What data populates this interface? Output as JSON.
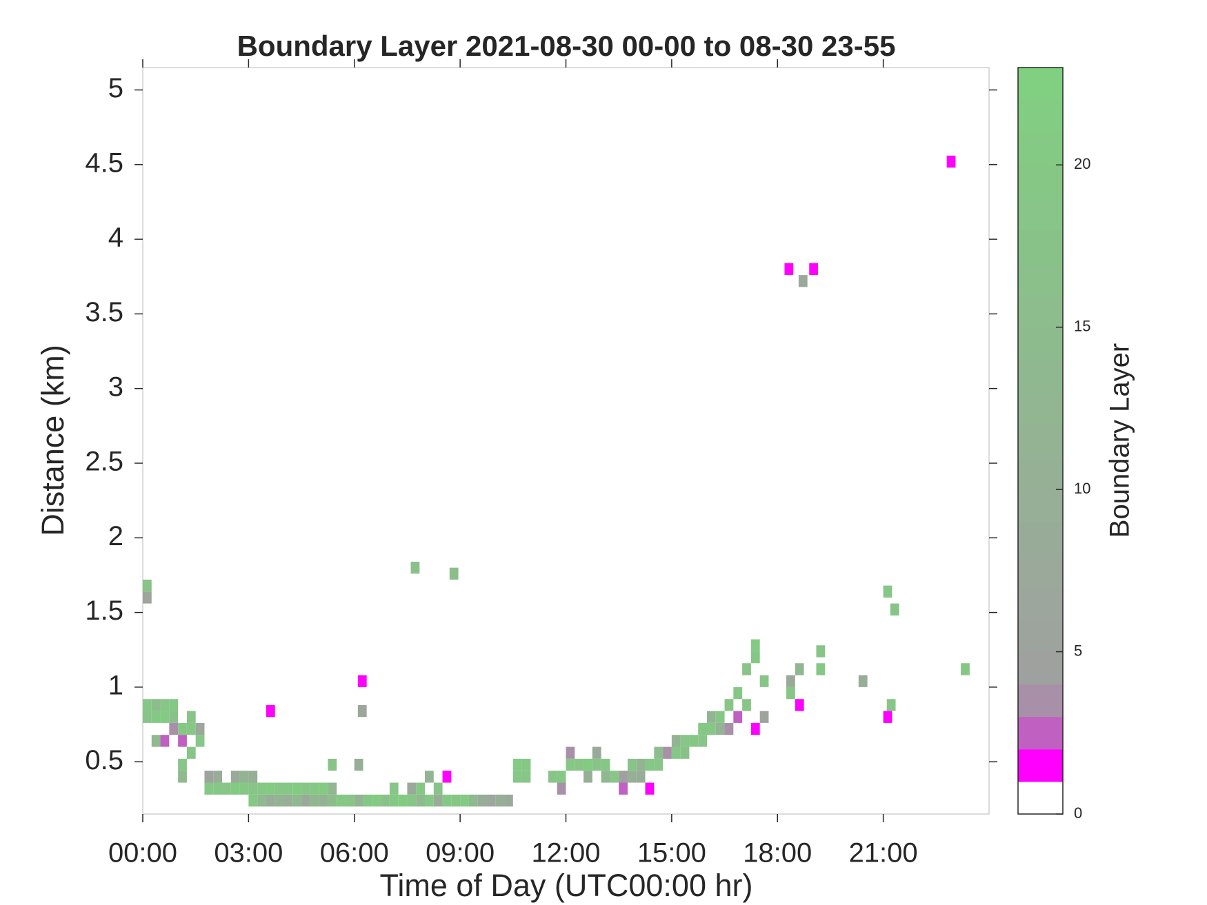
{
  "chart_data": {
    "type": "heatmap",
    "title": "Boundary Layer 2021-08-30 00-00 to 08-30 23-55",
    "x_label": "Time of Day (UTC00:00 hr)",
    "y_label": "Distance (km)",
    "xlim": [
      0,
      24
    ],
    "xticks": [
      {
        "value": 0,
        "label": "00:00"
      },
      {
        "value": 3,
        "label": "03:00"
      },
      {
        "value": 6,
        "label": "06:00"
      },
      {
        "value": 9,
        "label": "09:00"
      },
      {
        "value": 12,
        "label": "12:00"
      },
      {
        "value": 15,
        "label": "15:00"
      },
      {
        "value": 18,
        "label": "18:00"
      },
      {
        "value": 21,
        "label": "21:00"
      }
    ],
    "ylim": [
      0.15,
      5.15
    ],
    "yticks": [
      0.5,
      1,
      1.5,
      2,
      2.5,
      3,
      3.5,
      4,
      4.5,
      5
    ],
    "colorbar": {
      "label": "Boundary Layer",
      "lim": [
        0,
        23
      ],
      "ticks": [
        0,
        5,
        10,
        15,
        20
      ],
      "colormap": [
        "#ffffff",
        "#ff00ff",
        "#c060c0",
        "#a890a8",
        "#a0a0a0",
        "#80d080"
      ]
    },
    "cells": [
      [
        0,
        0.76,
        18
      ],
      [
        0,
        0.84,
        20
      ],
      [
        0.25,
        0.76,
        20
      ],
      [
        0.25,
        0.84,
        16
      ],
      [
        0.5,
        0.76,
        21
      ],
      [
        0.5,
        0.84,
        19
      ],
      [
        0.75,
        0.76,
        17
      ],
      [
        0.75,
        0.84,
        20
      ],
      [
        0,
        1.56,
        6
      ],
      [
        0,
        1.64,
        18
      ],
      [
        0.25,
        0.6,
        14
      ],
      [
        0.5,
        0.6,
        2
      ],
      [
        0.75,
        0.68,
        3
      ],
      [
        1,
        0.68,
        20
      ],
      [
        1,
        0.6,
        2
      ],
      [
        1,
        0.44,
        19
      ],
      [
        1,
        0.36,
        14
      ],
      [
        1.25,
        0.68,
        20
      ],
      [
        1.25,
        0.76,
        18
      ],
      [
        1.25,
        0.52,
        19
      ],
      [
        1.5,
        0.68,
        7
      ],
      [
        1.5,
        0.6,
        19
      ],
      [
        1.75,
        0.36,
        5
      ],
      [
        1.75,
        0.28,
        20
      ],
      [
        2,
        0.28,
        20
      ],
      [
        2,
        0.36,
        9
      ],
      [
        2.25,
        0.28,
        19
      ],
      [
        2.5,
        0.28,
        21
      ],
      [
        2.5,
        0.36,
        8
      ],
      [
        2.75,
        0.28,
        20
      ],
      [
        2.75,
        0.36,
        12
      ],
      [
        3,
        0.2,
        20
      ],
      [
        3,
        0.28,
        18
      ],
      [
        3,
        0.36,
        10
      ],
      [
        3.25,
        0.2,
        14
      ],
      [
        3.25,
        0.28,
        20
      ],
      [
        3.5,
        0.2,
        9
      ],
      [
        3.5,
        0.28,
        21
      ],
      [
        3.5,
        0.8,
        1.5
      ],
      [
        3.75,
        0.2,
        12
      ],
      [
        3.75,
        0.28,
        19
      ],
      [
        4,
        0.2,
        10
      ],
      [
        4,
        0.28,
        20
      ],
      [
        4.25,
        0.2,
        14
      ],
      [
        4.25,
        0.28,
        21
      ],
      [
        4.5,
        0.2,
        8
      ],
      [
        4.5,
        0.28,
        19
      ],
      [
        4.75,
        0.2,
        13
      ],
      [
        4.75,
        0.28,
        20
      ],
      [
        5,
        0.2,
        11
      ],
      [
        5,
        0.28,
        21
      ],
      [
        5.25,
        0.2,
        16
      ],
      [
        5.25,
        0.28,
        13
      ],
      [
        5.25,
        0.44,
        18
      ],
      [
        5.5,
        0.2,
        20
      ],
      [
        5.75,
        0.2,
        19
      ],
      [
        6,
        0.2,
        12
      ],
      [
        6,
        0.44,
        10
      ],
      [
        6.1,
        0.8,
        6
      ],
      [
        6.1,
        1.0,
        1.5
      ],
      [
        6.25,
        0.2,
        20
      ],
      [
        6.5,
        0.2,
        21
      ],
      [
        6.75,
        0.2,
        17
      ],
      [
        7,
        0.2,
        20
      ],
      [
        7,
        0.28,
        19
      ],
      [
        7.25,
        0.2,
        21
      ],
      [
        7.5,
        0.2,
        19
      ],
      [
        7.5,
        0.28,
        8
      ],
      [
        7.6,
        1.76,
        17
      ],
      [
        7.75,
        0.2,
        14
      ],
      [
        7.75,
        0.28,
        20
      ],
      [
        8,
        0.2,
        20
      ],
      [
        8,
        0.36,
        12
      ],
      [
        8.25,
        0.28,
        18
      ],
      [
        8.25,
        0.2,
        9
      ],
      [
        8.5,
        0.2,
        20
      ],
      [
        8.5,
        0.36,
        1.5
      ],
      [
        8.7,
        1.72,
        16
      ],
      [
        8.75,
        0.2,
        19
      ],
      [
        9,
        0.2,
        21
      ],
      [
        9.25,
        0.2,
        14
      ],
      [
        9.5,
        0.2,
        9
      ],
      [
        9.75,
        0.2,
        7
      ],
      [
        10,
        0.2,
        10
      ],
      [
        10.25,
        0.2,
        8
      ],
      [
        10.5,
        0.36,
        20
      ],
      [
        10.5,
        0.44,
        21
      ],
      [
        10.75,
        0.36,
        19
      ],
      [
        10.75,
        0.44,
        20
      ],
      [
        11.5,
        0.36,
        18
      ],
      [
        11.75,
        0.28,
        3
      ],
      [
        11.75,
        0.36,
        20
      ],
      [
        12,
        0.44,
        20
      ],
      [
        12,
        0.52,
        3
      ],
      [
        12.25,
        0.44,
        19
      ],
      [
        12.5,
        0.44,
        21
      ],
      [
        12.5,
        0.36,
        10
      ],
      [
        12.75,
        0.44,
        18
      ],
      [
        12.75,
        0.52,
        8
      ],
      [
        13,
        0.36,
        13
      ],
      [
        13,
        0.44,
        20
      ],
      [
        13.25,
        0.36,
        19
      ],
      [
        13.5,
        0.28,
        2
      ],
      [
        13.5,
        0.36,
        4
      ],
      [
        13.75,
        0.36,
        10
      ],
      [
        13.75,
        0.44,
        18
      ],
      [
        14,
        0.36,
        9
      ],
      [
        14,
        0.44,
        12
      ],
      [
        14.25,
        0.28,
        1.5
      ],
      [
        14.25,
        0.44,
        20
      ],
      [
        14.5,
        0.44,
        19
      ],
      [
        14.5,
        0.52,
        16
      ],
      [
        14.75,
        0.52,
        3
      ],
      [
        15,
        0.52,
        20
      ],
      [
        15,
        0.6,
        12
      ],
      [
        15.25,
        0.52,
        17
      ],
      [
        15.25,
        0.6,
        19
      ],
      [
        15.5,
        0.6,
        20
      ],
      [
        15.75,
        0.6,
        19
      ],
      [
        15.75,
        0.68,
        20
      ],
      [
        16,
        0.68,
        20
      ],
      [
        16,
        0.76,
        12
      ],
      [
        16.25,
        0.68,
        11
      ],
      [
        16.25,
        0.76,
        20
      ],
      [
        16.5,
        0.84,
        19
      ],
      [
        16.5,
        0.68,
        3
      ],
      [
        16.75,
        0.92,
        20
      ],
      [
        16.75,
        0.76,
        2
      ],
      [
        17,
        1.08,
        18
      ],
      [
        17,
        0.84,
        19
      ],
      [
        17.25,
        1.16,
        20
      ],
      [
        17.25,
        1.24,
        21
      ],
      [
        17.25,
        0.68,
        1.5
      ],
      [
        17.5,
        1.0,
        19
      ],
      [
        17.5,
        0.76,
        5
      ],
      [
        18.25,
        0.92,
        19
      ],
      [
        18.25,
        1.0,
        8
      ],
      [
        18.5,
        0.84,
        1.5
      ],
      [
        18.5,
        1.08,
        13
      ],
      [
        18.6,
        3.68,
        7
      ],
      [
        18.2,
        3.76,
        1.5
      ],
      [
        18.9,
        3.76,
        1.5
      ],
      [
        19.1,
        1.2,
        18
      ],
      [
        19.1,
        1.08,
        20
      ],
      [
        20.3,
        1.0,
        9
      ],
      [
        21,
        1.6,
        19
      ],
      [
        21,
        0.76,
        1.5
      ],
      [
        21.1,
        0.84,
        19
      ],
      [
        21.2,
        1.48,
        18
      ],
      [
        22.8,
        4.48,
        1.5
      ],
      [
        23.2,
        1.08,
        20
      ]
    ]
  }
}
